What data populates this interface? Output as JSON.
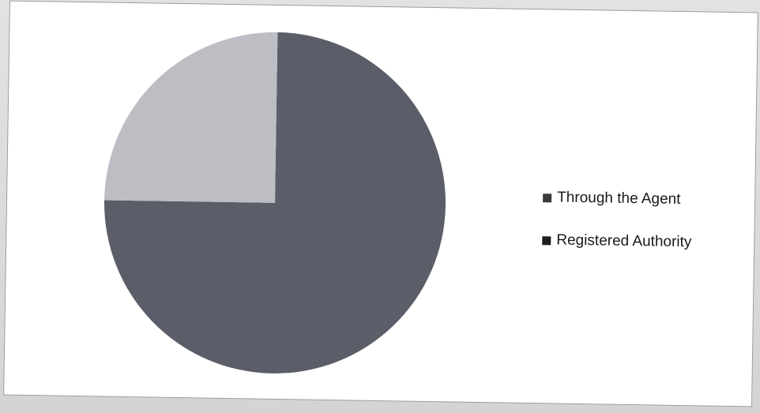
{
  "chart_data": {
    "type": "pie",
    "title": "",
    "slices": [
      {
        "label": "Through the Agent",
        "value": 0.75,
        "color": "#5b5e69"
      },
      {
        "label": "Registered Authority",
        "value": 0.25,
        "color": "#bcbec4"
      }
    ],
    "legend_position": "right",
    "legend": [
      {
        "label": "Through the Agent",
        "color": "#3a3a3a"
      },
      {
        "label": "Registered Authority",
        "color": "#1e1e1e"
      }
    ]
  }
}
